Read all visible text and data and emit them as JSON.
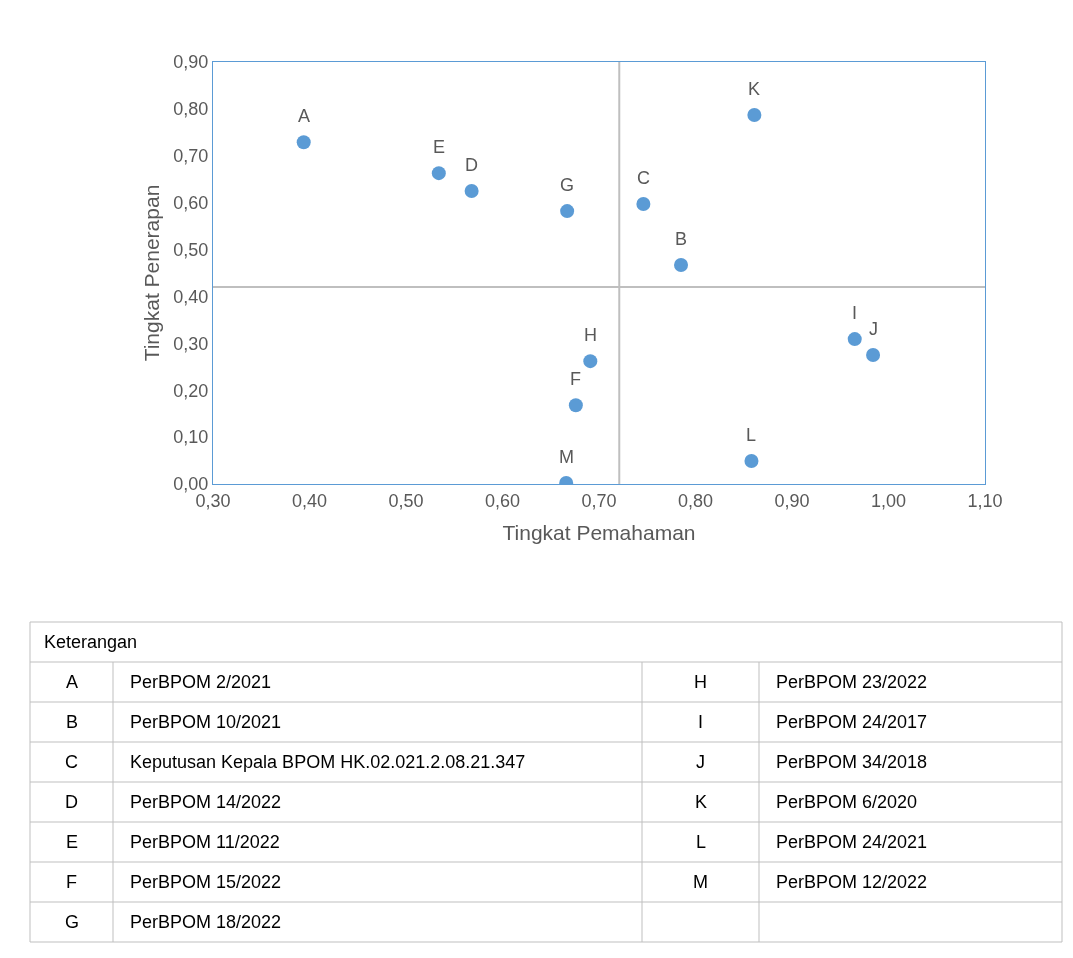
{
  "chart_data": {
    "type": "scatter",
    "xlabel": "Tingkat Pemahaman",
    "ylabel": "Tingkat Penerapan",
    "x": [
      0.394,
      0.785,
      0.746,
      0.568,
      0.534,
      0.676,
      0.667,
      0.691,
      0.965,
      0.984,
      0.861,
      0.858,
      0.666
    ],
    "series": [
      {
        "color": "#5b9bd5",
        "values": [
          0.729,
          0.467,
          0.597,
          0.625,
          0.663,
          0.168,
          0.582,
          0.262,
          0.309,
          0.275,
          0.787,
          0.049,
          0.002
        ]
      }
    ],
    "marker": "circle",
    "xlim": [
      0.3,
      1.1
    ],
    "xticks": [
      {
        "value": 0.3,
        "label": "0,30"
      },
      {
        "value": 0.4,
        "label": "0,40"
      },
      {
        "value": 0.5,
        "label": "0,50"
      },
      {
        "value": 0.6,
        "label": "0,60"
      },
      {
        "value": 0.7,
        "label": "0,70"
      },
      {
        "value": 0.8,
        "label": "0,80"
      },
      {
        "value": 0.9,
        "label": "0,90"
      },
      {
        "value": 1.0,
        "label": "1,00"
      },
      {
        "value": 1.1,
        "label": "1,10"
      }
    ],
    "ylim": [
      0,
      0.9
    ],
    "yticks": [
      {
        "value": 0,
        "label": "0,00"
      },
      {
        "value": 0.1,
        "label": "0,10"
      },
      {
        "value": 0.2,
        "label": "0,20"
      },
      {
        "value": 0.3,
        "label": "0,30"
      },
      {
        "value": 0.4,
        "label": "0,40"
      },
      {
        "value": 0.5,
        "label": "0,50"
      },
      {
        "value": 0.6,
        "label": "0,60"
      },
      {
        "value": 0.7,
        "label": "0,70"
      },
      {
        "value": 0.8,
        "label": "0,80"
      },
      {
        "value": 0.9,
        "label": "0,90"
      }
    ],
    "ref_lines": [
      {
        "axis": "x",
        "value": 0.721,
        "color": "#bfbfbf"
      },
      {
        "axis": "y",
        "value": 0.42,
        "color": "#bfbfbf"
      }
    ],
    "annotations": [
      {
        "text": "A",
        "x": 0.394,
        "y": 0.729
      },
      {
        "text": "B",
        "x": 0.785,
        "y": 0.467
      },
      {
        "text": "C",
        "x": 0.746,
        "y": 0.597
      },
      {
        "text": "D",
        "x": 0.568,
        "y": 0.625
      },
      {
        "text": "E",
        "x": 0.534,
        "y": 0.663
      },
      {
        "text": "F",
        "x": 0.676,
        "y": 0.168
      },
      {
        "text": "G",
        "x": 0.667,
        "y": 0.582
      },
      {
        "text": "H",
        "x": 0.691,
        "y": 0.262
      },
      {
        "text": "I",
        "x": 0.965,
        "y": 0.309
      },
      {
        "text": "J",
        "x": 0.984,
        "y": 0.275
      },
      {
        "text": "K",
        "x": 0.861,
        "y": 0.787
      },
      {
        "text": "L",
        "x": 0.858,
        "y": 0.049
      },
      {
        "text": "M",
        "x": 0.666,
        "y": 0.002
      },
      "Keterangan",
      "A",
      "PerBPOM 2/2021",
      "H",
      "PerBPOM 23/2022",
      "B",
      "PerBPOM 10/2021",
      "I",
      "PerBPOM 24/2017",
      "C",
      "Keputusan Kepala BPOM HK.02.021.2.08.21.347",
      "J",
      "PerBPOM 34/2018",
      "D",
      "PerBPOM 14/2022",
      "K",
      "PerBPOM 6/2020",
      "E",
      "PerBPOM 11/2022",
      "L",
      "PerBPOM 24/2021",
      "F",
      "PerBPOM 15/2022",
      "M",
      "PerBPOM 12/2022",
      "G",
      "PerBPOM 18/2022"
    ]
  }
}
